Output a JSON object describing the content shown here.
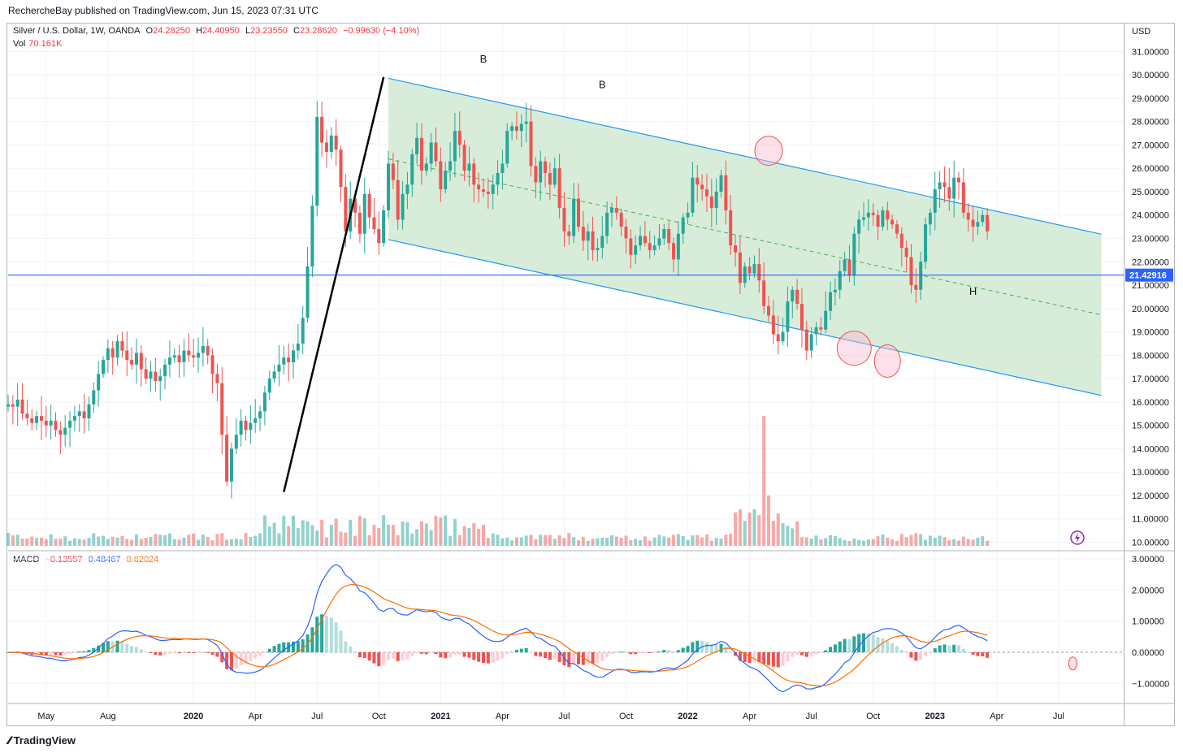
{
  "header": {
    "publisher_line": "RechercheBay published on TradingView.com, Jun 15, 2023 07:31 UTC"
  },
  "legend": {
    "symbol": "Silver / U.S. Dollar, 1W, OANDA",
    "open_label": "O",
    "open": "24.28250",
    "high_label": "H",
    "high": "24.40950",
    "low_label": "L",
    "low": "23.23550",
    "close_label": "C",
    "close": "23.28620",
    "change": "−0.99630 (−4.10%)",
    "vol_label": "Vol",
    "vol": "70.161K"
  },
  "macd_legend": {
    "label": "MACD",
    "histogram": "−0.13557",
    "macd": "0.48467",
    "signal": "0.62024"
  },
  "footer": {
    "brand": "TradingView"
  },
  "chart_data": {
    "type": "candlestick",
    "currency": "USD",
    "price_axis": {
      "ticks": [
        "31.00000",
        "30.00000",
        "29.00000",
        "28.00000",
        "27.00000",
        "26.00000",
        "25.00000",
        "24.00000",
        "23.00000",
        "22.00000",
        "21.00000",
        "20.00000",
        "19.00000",
        "18.00000",
        "17.00000",
        "16.00000",
        "15.00000",
        "14.00000",
        "13.00000",
        "12.00000",
        "11.00000",
        "10.00000"
      ],
      "tick_values": [
        31,
        30,
        29,
        28,
        27,
        26,
        25,
        24,
        23,
        22,
        21,
        20,
        19,
        18,
        17,
        16,
        15,
        14,
        13,
        12,
        11,
        10
      ],
      "range": [
        9.8,
        31.6
      ]
    },
    "macd_axis": {
      "ticks": [
        "3.00000",
        "2.00000",
        "1.00000",
        "0.00000",
        "−1.00000"
      ],
      "tick_values": [
        3,
        2,
        1,
        0,
        -1
      ],
      "range": [
        -1.7,
        3.35
      ]
    },
    "time_axis": [
      {
        "label": "May",
        "week": 8,
        "bold": false
      },
      {
        "label": "Aug",
        "week": 21,
        "bold": false
      },
      {
        "label": "2020",
        "week": 39,
        "bold": true
      },
      {
        "label": "Apr",
        "week": 52,
        "bold": false
      },
      {
        "label": "Jul",
        "week": 65,
        "bold": false
      },
      {
        "label": "Oct",
        "week": 78,
        "bold": false
      },
      {
        "label": "2021",
        "week": 91,
        "bold": true
      },
      {
        "label": "Apr",
        "week": 104,
        "bold": false
      },
      {
        "label": "Jul",
        "week": 117,
        "bold": false
      },
      {
        "label": "Oct",
        "week": 130,
        "bold": false
      },
      {
        "label": "2022",
        "week": 143,
        "bold": true
      },
      {
        "label": "Apr",
        "week": 156,
        "bold": false
      },
      {
        "label": "Jul",
        "week": 169,
        "bold": false
      },
      {
        "label": "Oct",
        "week": 182,
        "bold": false
      },
      {
        "label": "2023",
        "week": 195,
        "bold": true
      },
      {
        "label": "Apr",
        "week": 208,
        "bold": false
      },
      {
        "label": "Jul",
        "week": 221,
        "bold": false
      }
    ],
    "current_price": "21.42916",
    "current_price_value": 21.42916,
    "weekly_close": [
      15.9,
      15.8,
      16.1,
      15.5,
      15.3,
      15.1,
      15.4,
      15.2,
      15.0,
      15.2,
      14.8,
      14.6,
      14.9,
      15.2,
      15.4,
      15.6,
      15.3,
      15.9,
      16.5,
      17.2,
      17.8,
      18.3,
      17.9,
      18.6,
      18.2,
      17.8,
      17.6,
      18.1,
      17.4,
      17.0,
      17.3,
      16.9,
      17.1,
      17.6,
      17.9,
      18.0,
      17.7,
      18.2,
      18.0,
      17.9,
      18.1,
      18.4,
      18.0,
      17.2,
      16.8,
      14.6,
      12.6,
      14.0,
      14.6,
      15.2,
      14.8,
      15.1,
      15.3,
      15.6,
      16.4,
      17.0,
      17.3,
      17.6,
      17.9,
      17.7,
      18.2,
      18.5,
      19.6,
      21.8,
      24.4,
      28.2,
      27.1,
      26.7,
      27.4,
      26.8,
      25.2,
      23.3,
      24.7,
      24.1,
      23.2,
      24.9,
      23.9,
      23.4,
      22.8,
      24.2,
      26.2,
      25.5,
      23.8,
      24.9,
      25.3,
      26.6,
      27.3,
      25.9,
      26.2,
      27.1,
      26.3,
      25.1,
      25.9,
      26.3,
      27.6,
      27.0,
      25.9,
      26.2,
      25.3,
      25.1,
      25.0,
      24.9,
      25.3,
      25.8,
      26.2,
      27.6,
      27.8,
      27.6,
      27.9,
      28.0,
      26.1,
      25.4,
      26.3,
      25.8,
      25.3,
      26.0,
      24.3,
      23.3,
      23.1,
      24.7,
      23.5,
      22.9,
      23.3,
      22.5,
      22.6,
      23.1,
      24.1,
      24.3,
      24.1,
      23.5,
      23.0,
      22.3,
      22.7,
      23.1,
      22.8,
      22.5,
      22.7,
      23.0,
      23.4,
      22.8,
      22.1,
      23.2,
      23.9,
      24.1,
      25.6,
      25.3,
      25.1,
      24.8,
      24.3,
      25.0,
      25.7,
      24.2,
      22.7,
      22.4,
      21.1,
      21.8,
      21.5,
      21.9,
      21.2,
      20.1,
      19.7,
      18.9,
      18.6,
      19.0,
      20.3,
      20.8,
      20.2,
      19.1,
      18.2,
      18.9,
      19.2,
      19.1,
      19.9,
      20.7,
      20.8,
      21.6,
      22.1,
      21.4,
      23.2,
      23.8,
      23.9,
      24.1,
      24.0,
      23.5,
      24.2,
      23.8,
      23.6,
      23.2,
      22.6,
      22.2,
      21.0,
      20.8,
      22.0,
      23.6,
      24.1,
      25.1,
      25.4,
      25.2,
      24.7,
      25.6,
      25.4,
      24.1,
      23.8,
      23.5,
      23.7,
      24.0,
      23.3
    ],
    "volume_spike_week": 159,
    "channel": {
      "upper": {
        "start_week": 80,
        "start_price": 29.85,
        "end_week": 230,
        "end_price": 23.18
      },
      "lower": {
        "start_week": 80,
        "start_price": 22.95,
        "end_week": 230,
        "end_price": 16.28
      },
      "mid_dashed": true
    },
    "impulse_line": {
      "from": {
        "week": 58,
        "price": 12.15
      },
      "to": {
        "week": 79,
        "price": 29.9
      }
    },
    "annotations": [
      {
        "text": "B",
        "week": 100,
        "price": 30.7
      },
      {
        "text": "B",
        "week": 125,
        "price": 29.6
      },
      {
        "text": "H",
        "week": 203,
        "price": 20.75
      }
    ],
    "circles": [
      {
        "week": 160,
        "price": 26.75,
        "rx": 17,
        "ry": 18
      },
      {
        "week": 178,
        "price": 18.3,
        "rx": 21,
        "ry": 21
      },
      {
        "week": 185,
        "price": 17.75,
        "rx": 16,
        "ry": 20
      },
      {
        "week": 224,
        "macd": -0.36,
        "rx": 5,
        "ry": 8
      }
    ],
    "colors": {
      "up": "#26a69a",
      "down": "#ef5350",
      "channel": "#2196f3",
      "channel_fill": "#c8e6c9",
      "macd": "#2962ff",
      "signal": "#ff6d00",
      "impulse": "#000000"
    }
  }
}
